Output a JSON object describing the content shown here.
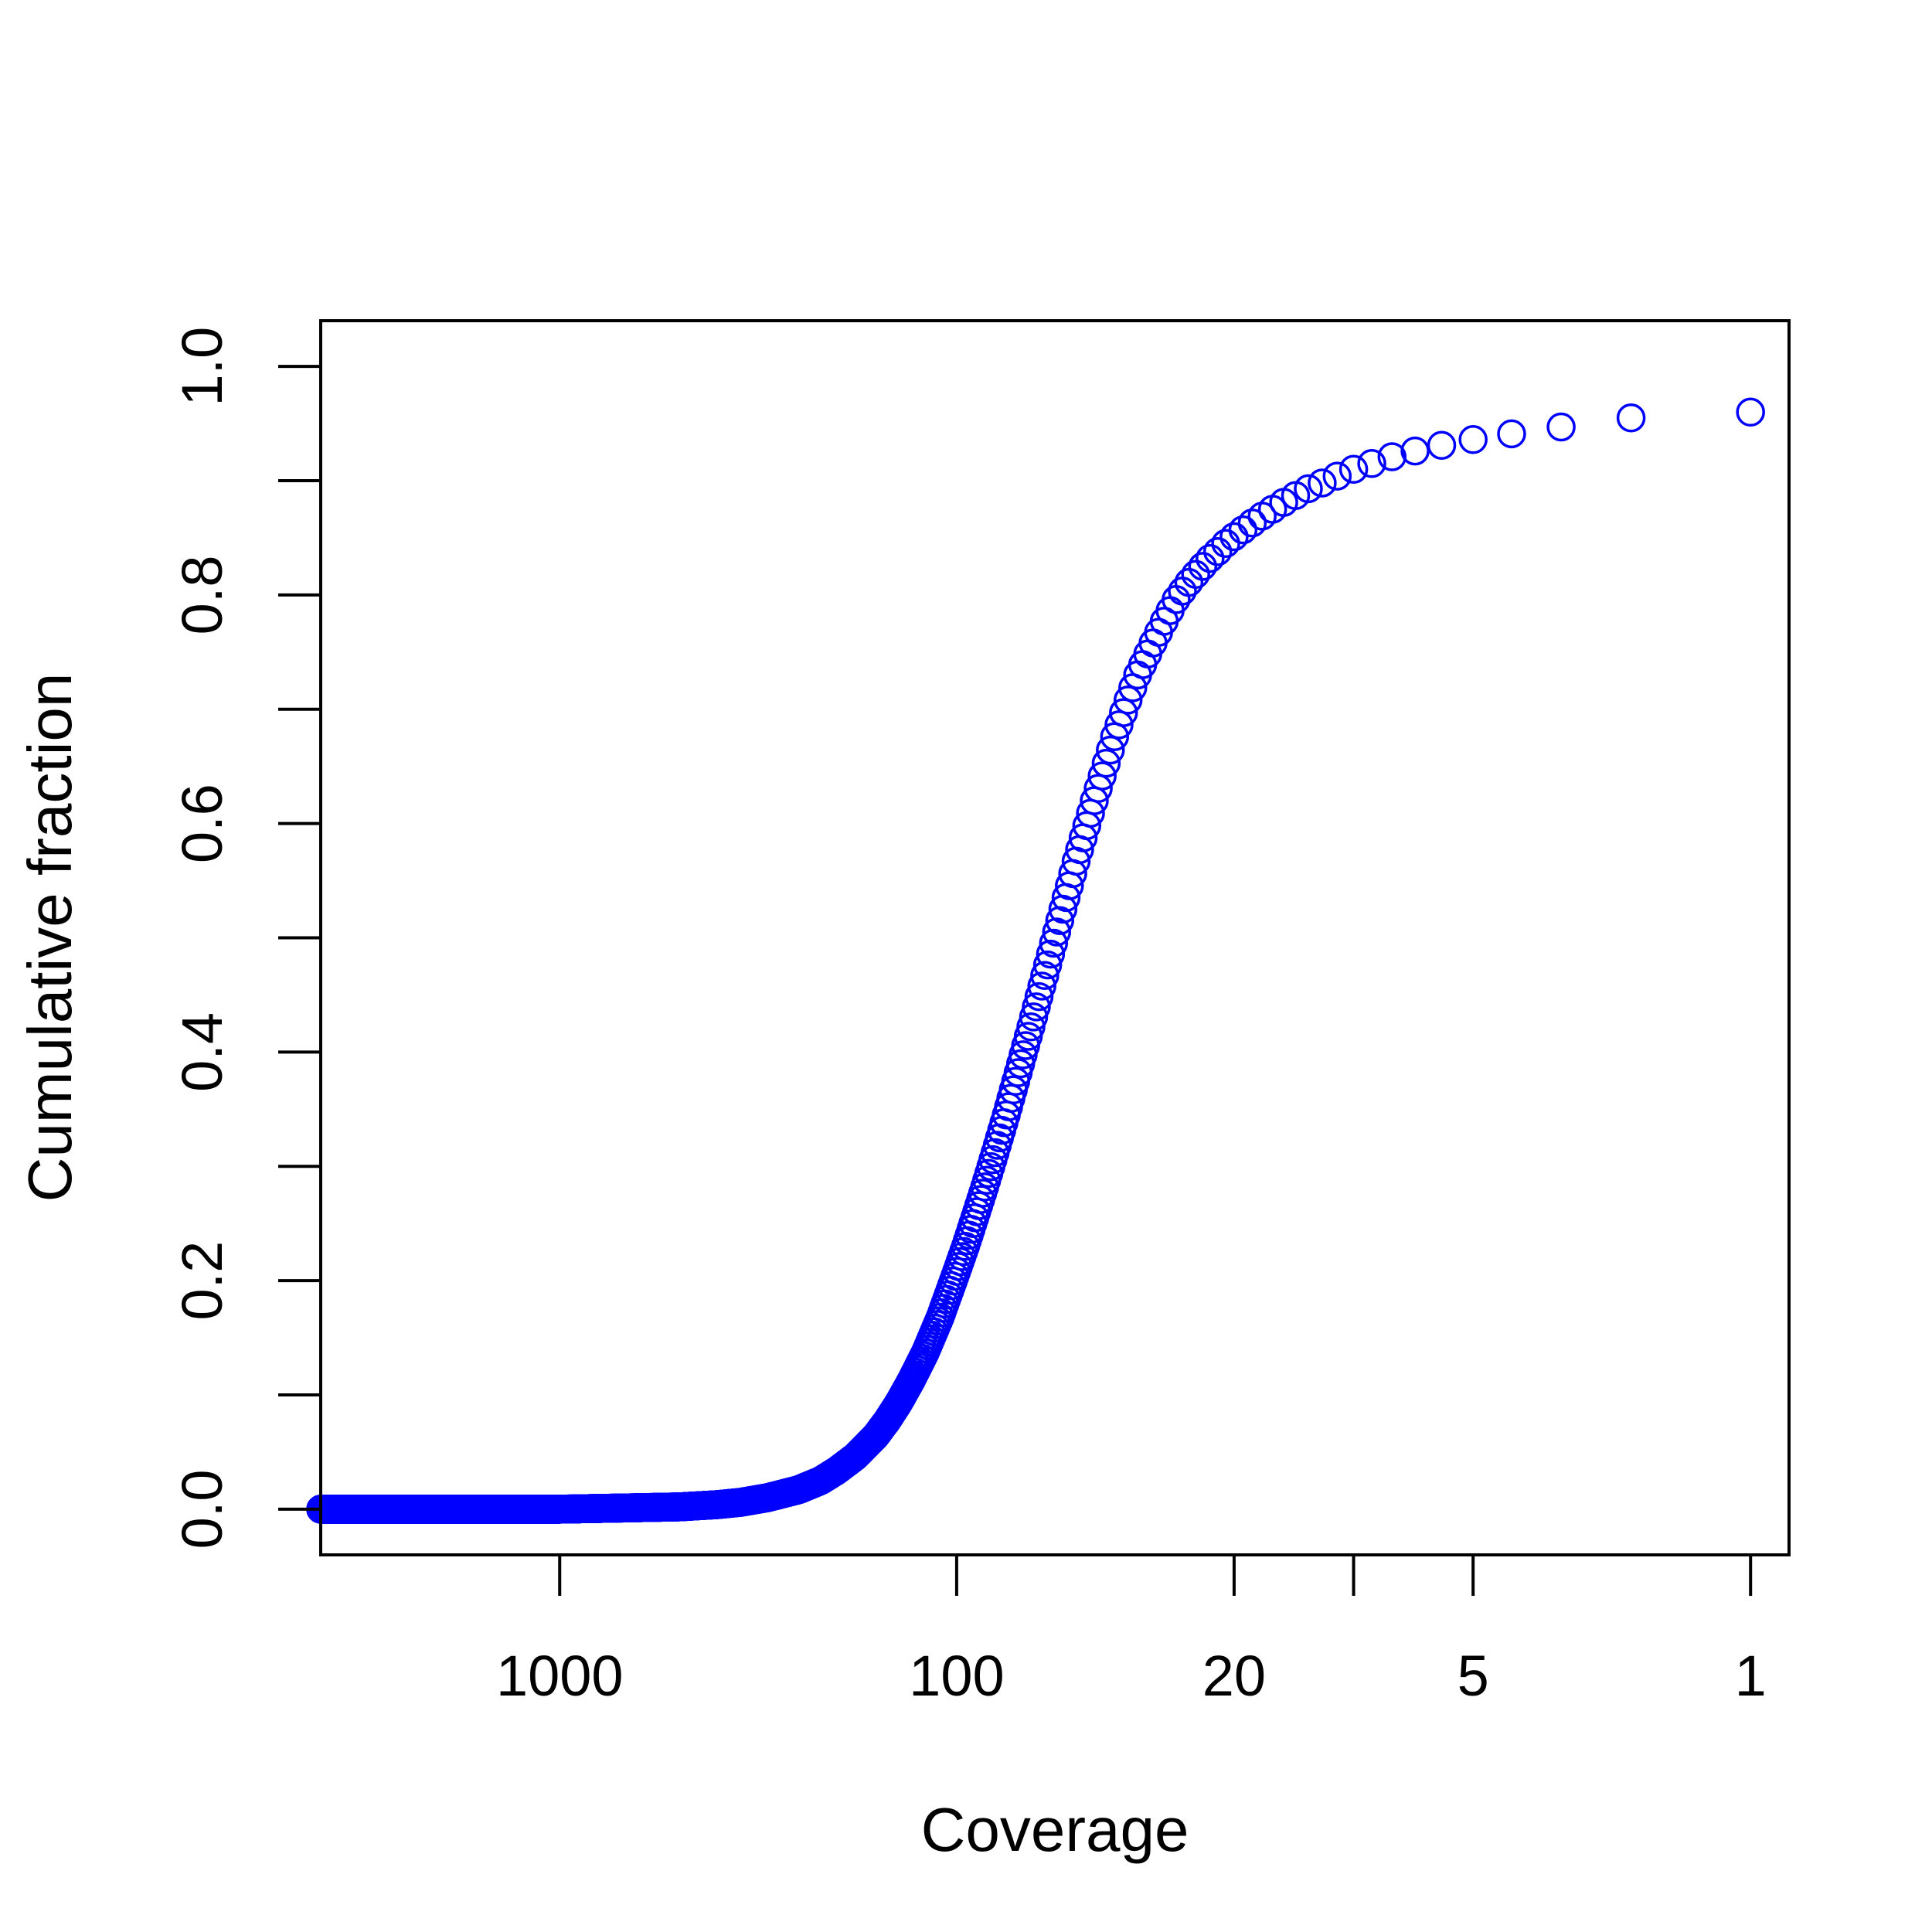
{
  "chart_data": {
    "type": "scatter",
    "xlabel": "Coverage",
    "ylabel": "Cumulative fraction",
    "x_scale": "log",
    "x_reversed": true,
    "xlim": [
      4000,
      0.8
    ],
    "ylim": [
      -0.04,
      1.04
    ],
    "x_ticks": [
      1000,
      100,
      20,
      10,
      5,
      1
    ],
    "x_tick_labels": [
      "1000",
      "100",
      "20",
      "",
      "5",
      "1"
    ],
    "y_ticks": [
      0.0,
      0.1,
      0.2,
      0.3,
      0.4,
      0.5,
      0.6,
      0.7,
      0.8,
      0.9,
      1.0
    ],
    "y_tick_labels": [
      "0.0",
      "",
      "0.2",
      "",
      "0.4",
      "",
      "0.6",
      "",
      "0.8",
      "",
      "1.0"
    ],
    "grid": false,
    "marker": "open-circle",
    "point_color": "#0000ff",
    "series": [
      {
        "x_max": 4000,
        "x_min": 1,
        "points": [
          [
            4000,
            0.0
          ],
          [
            3000,
            0.0
          ],
          [
            2000,
            0.0
          ],
          [
            1500,
            0.0
          ],
          [
            1000,
            0.0
          ],
          [
            700,
            0.001
          ],
          [
            500,
            0.002
          ],
          [
            400,
            0.004
          ],
          [
            350,
            0.006
          ],
          [
            300,
            0.01
          ],
          [
            250,
            0.017
          ],
          [
            220,
            0.025
          ],
          [
            200,
            0.034
          ],
          [
            180,
            0.046
          ],
          [
            160,
            0.064
          ],
          [
            150,
            0.077
          ],
          [
            140,
            0.093
          ],
          [
            130,
            0.113
          ],
          [
            120,
            0.137
          ],
          [
            110,
            0.168
          ],
          [
            100,
            0.208
          ],
          [
            95,
            0.23
          ],
          [
            90,
            0.255
          ],
          [
            85,
            0.282
          ],
          [
            80,
            0.312
          ],
          [
            75,
            0.345
          ],
          [
            70,
            0.382
          ],
          [
            65,
            0.422
          ],
          [
            60,
            0.467
          ],
          [
            55,
            0.515
          ],
          [
            50,
            0.567
          ],
          [
            45,
            0.62
          ],
          [
            40,
            0.676
          ],
          [
            37,
            0.708
          ],
          [
            35,
            0.73
          ],
          [
            32,
            0.758
          ],
          [
            30,
            0.777
          ],
          [
            28,
            0.796
          ],
          [
            26,
            0.811
          ],
          [
            25,
            0.818
          ],
          [
            24,
            0.825
          ],
          [
            23,
            0.832
          ],
          [
            22,
            0.838
          ],
          [
            21,
            0.845
          ],
          [
            20,
            0.851
          ],
          [
            19,
            0.857
          ],
          [
            18,
            0.863
          ],
          [
            17,
            0.869
          ],
          [
            16,
            0.875
          ],
          [
            15,
            0.881
          ],
          [
            14,
            0.887
          ],
          [
            13,
            0.893
          ],
          [
            12,
            0.898
          ],
          [
            11,
            0.904
          ],
          [
            10,
            0.91
          ],
          [
            9,
            0.915
          ],
          [
            8,
            0.921
          ],
          [
            7,
            0.926
          ],
          [
            6,
            0.931
          ],
          [
            5,
            0.936
          ],
          [
            4,
            0.941
          ],
          [
            3,
            0.947
          ],
          [
            2,
            0.955
          ],
          [
            1,
            0.96
          ]
        ]
      }
    ]
  }
}
